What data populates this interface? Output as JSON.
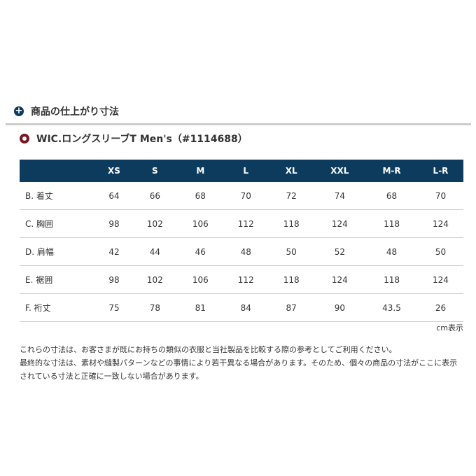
{
  "section_title": "商品の仕上がり寸法",
  "product_title": "WIC.ロングスリーブT Men's（#1114688）",
  "table": {
    "headers": [
      "",
      "XS",
      "S",
      "M",
      "L",
      "XL",
      "XXL",
      "M-R",
      "L-R"
    ],
    "rows": [
      [
        "B. 着丈",
        "64",
        "66",
        "68",
        "70",
        "72",
        "74",
        "68",
        "70"
      ],
      [
        "C. 胸囲",
        "98",
        "102",
        "106",
        "112",
        "118",
        "124",
        "118",
        "124"
      ],
      [
        "D. 肩幅",
        "42",
        "44",
        "46",
        "48",
        "50",
        "52",
        "48",
        "50"
      ],
      [
        "E. 裾囲",
        "98",
        "102",
        "106",
        "112",
        "118",
        "124",
        "118",
        "124"
      ],
      [
        "F. 裄丈",
        "75",
        "78",
        "81",
        "84",
        "87",
        "90",
        "43.5",
        "26"
      ]
    ]
  },
  "unit_note": "cm表示",
  "notes": [
    "これらの寸法は、お客さまが既にお持ちの類似の衣服と当社製品を比較する際の参考としてご利用ください。",
    "最終的な寸法は、素材や縫製パターンなどの事情により若干異なる場合があります。そのため、個々の商品の寸法がここに表示されている寸法と正確に一致しない場合があります。"
  ]
}
